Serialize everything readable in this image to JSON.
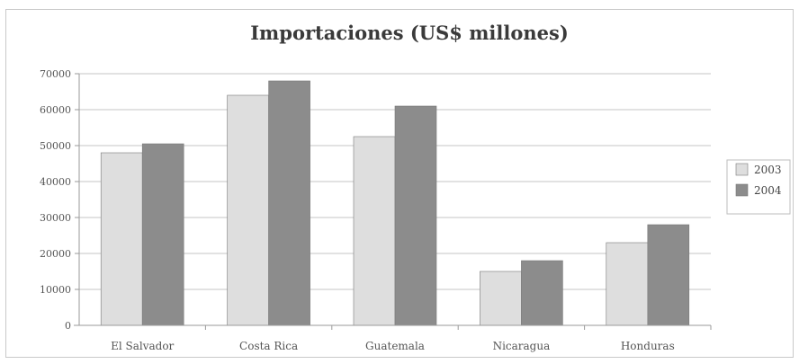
{
  "chart_data": {
    "type": "bar",
    "title": "Importaciones (US$ millones)",
    "xlabel": "",
    "ylabel": "",
    "categories": [
      "El Salvador",
      "Costa Rica",
      "Guatemala",
      "Nicaragua",
      "Honduras"
    ],
    "series": [
      {
        "name": "2003",
        "color": "#dedede",
        "values": [
          48000,
          64000,
          52500,
          15000,
          23000
        ]
      },
      {
        "name": "2004",
        "color": "#8c8c8c",
        "values": [
          50500,
          68000,
          61000,
          18000,
          28000
        ]
      }
    ],
    "ylim": [
      0,
      70000
    ],
    "yticks": [
      "0",
      "10000",
      "20000",
      "30000",
      "40000",
      "50000",
      "60000",
      "70000"
    ],
    "grid": true,
    "legend": "right"
  }
}
